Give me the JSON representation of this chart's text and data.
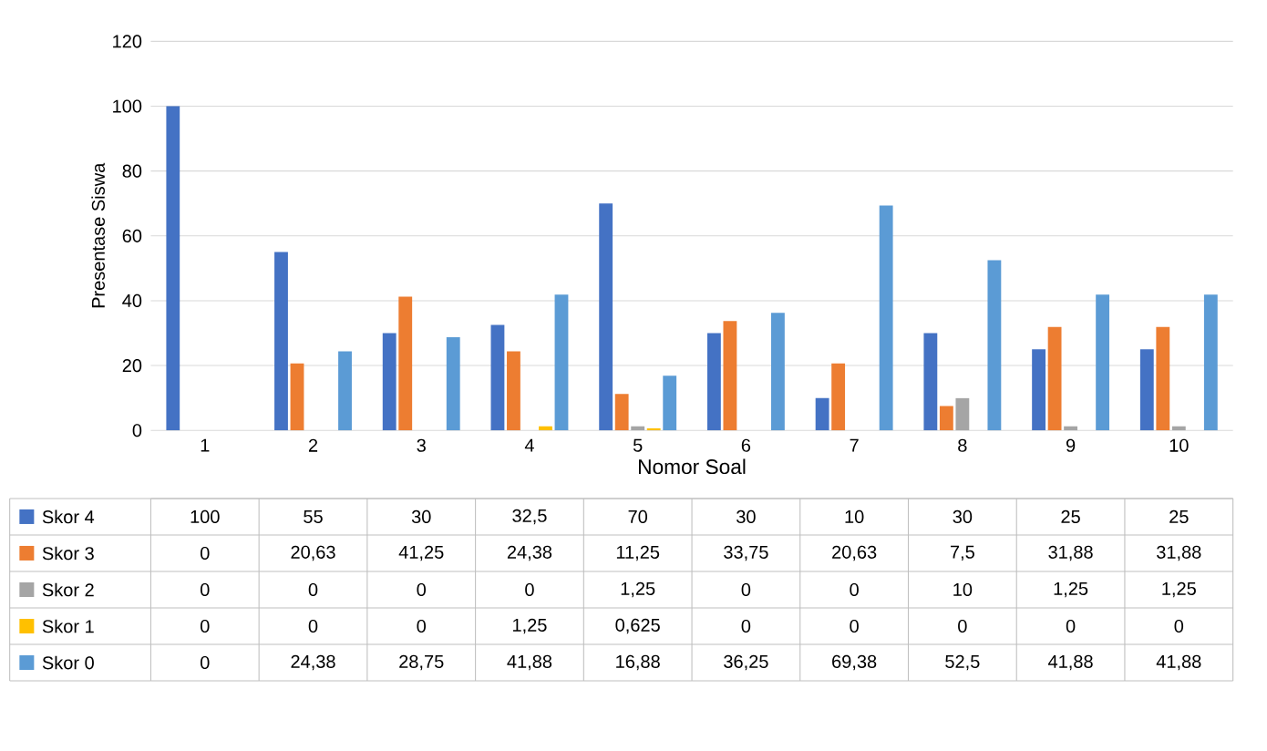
{
  "chart_data": {
    "type": "bar",
    "xlabel": "Nomor  Soal",
    "ylabel": "Presentase Siswa",
    "categories": [
      "1",
      "2",
      "3",
      "4",
      "5",
      "6",
      "7",
      "8",
      "9",
      "10"
    ],
    "series": [
      {
        "name": "Skor 4",
        "color": "#4472c4",
        "values": [
          100,
          55,
          30,
          32.5,
          70,
          30,
          10,
          30,
          25,
          25
        ],
        "value_labels": [
          "100",
          "55",
          "30",
          "32,5",
          "70",
          "30",
          "10",
          "30",
          "25",
          "25"
        ]
      },
      {
        "name": "Skor 3",
        "color": "#ed7d31",
        "values": [
          0,
          20.63,
          41.25,
          24.38,
          11.25,
          33.75,
          20.63,
          7.5,
          31.88,
          31.88
        ],
        "value_labels": [
          "0",
          "20,63",
          "41,25",
          "24,38",
          "11,25",
          "33,75",
          "20,63",
          "7,5",
          "31,88",
          "31,88"
        ]
      },
      {
        "name": "Skor 2",
        "color": "#a5a5a5",
        "values": [
          0,
          0,
          0,
          0,
          1.25,
          0,
          0,
          10,
          1.25,
          1.25
        ],
        "value_labels": [
          "0",
          "0",
          "0",
          "0",
          "1,25",
          "0",
          "0",
          "10",
          "1,25",
          "1,25"
        ]
      },
      {
        "name": "Skor 1",
        "color": "#ffc000",
        "values": [
          0,
          0,
          0,
          1.25,
          0.625,
          0,
          0,
          0,
          0,
          0
        ],
        "value_labels": [
          "0",
          "0",
          "0",
          "1,25",
          "0,625",
          "0",
          "0",
          "0",
          "0",
          "0"
        ]
      },
      {
        "name": "Skor 0",
        "color": "#5b9bd5",
        "values": [
          0,
          24.38,
          28.75,
          41.88,
          16.88,
          36.25,
          69.38,
          52.5,
          41.88,
          41.88
        ],
        "value_labels": [
          "0",
          "24,38",
          "28,75",
          "41,88",
          "16,88",
          "36,25",
          "69,38",
          "52,5",
          "41,88",
          "41,88"
        ]
      }
    ],
    "ylim": [
      0,
      120
    ],
    "yticks": [
      0,
      20,
      40,
      60,
      80,
      100,
      120
    ],
    "grid": "y",
    "legend": "bottom"
  }
}
